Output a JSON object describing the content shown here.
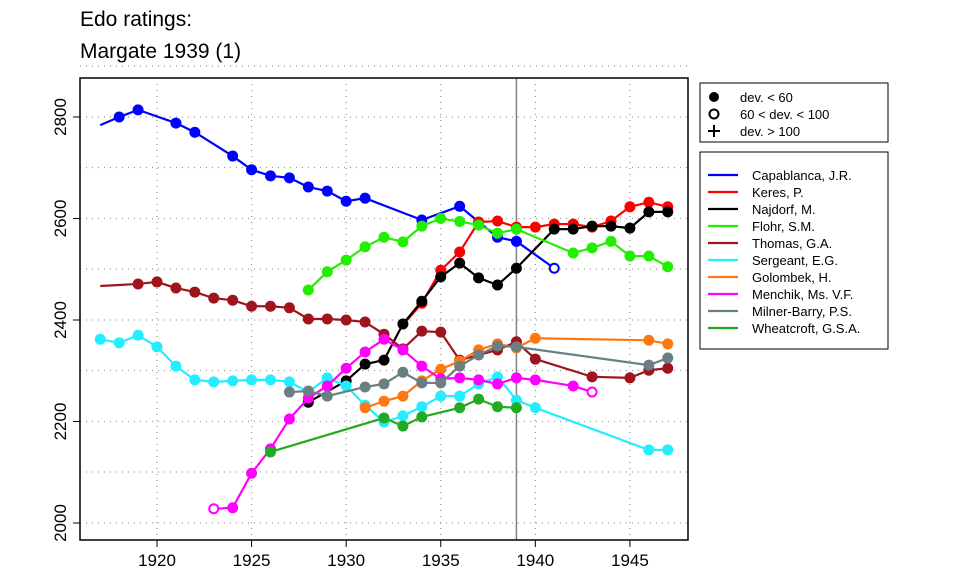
{
  "chart_data": {
    "type": "line",
    "title": [
      "Edo ratings:",
      "Margate 1939 (1)"
    ],
    "xlabel": "",
    "ylabel": "",
    "xlim": [
      1915.93,
      1948.07
    ],
    "ylim": [
      1966.5,
      2876.8
    ],
    "xticks": [
      1920,
      1925,
      1930,
      1935,
      1940,
      1945
    ],
    "yticks": [
      2000,
      2200,
      2400,
      2600,
      2800
    ],
    "grid": "dotted",
    "vline": {
      "x": 1939,
      "color": "#808080"
    },
    "marker_legend": {
      "position": "top-right",
      "entries": [
        {
          "symbol": "filled",
          "label": "dev. < 60"
        },
        {
          "symbol": "open",
          "label": "60 < dev. < 100"
        },
        {
          "symbol": "plus",
          "label": "dev. > 100"
        }
      ]
    },
    "series_legend_position": "right",
    "series": [
      {
        "name": "Capablanca, J.R.",
        "color": "#0000ff",
        "points": [
          [
            1917,
            2784,
            "none"
          ],
          [
            1918,
            2800,
            "f"
          ],
          [
            1919,
            2814,
            "f"
          ],
          [
            1921,
            2788,
            "f"
          ],
          [
            1922,
            2770,
            "f"
          ],
          [
            1924,
            2723,
            "f"
          ],
          [
            1925,
            2696,
            "f"
          ],
          [
            1926,
            2684,
            "f"
          ],
          [
            1927,
            2680,
            "f"
          ],
          [
            1928,
            2662,
            "f"
          ],
          [
            1929,
            2654,
            "f"
          ],
          [
            1930,
            2634,
            "f"
          ],
          [
            1931,
            2640,
            "f"
          ],
          [
            1934,
            2597,
            "f"
          ],
          [
            1936,
            2624,
            "f"
          ],
          [
            1938,
            2563,
            "f"
          ],
          [
            1939,
            2555,
            "f"
          ],
          [
            1941,
            2502,
            "o"
          ]
        ]
      },
      {
        "name": "Keres, P.",
        "color": "#ff0000",
        "points": [
          [
            1933,
            2390,
            "none"
          ],
          [
            1934,
            2433,
            "f"
          ],
          [
            1935,
            2498,
            "f"
          ],
          [
            1936,
            2534,
            "f"
          ],
          [
            1937,
            2593,
            "f"
          ],
          [
            1938,
            2595,
            "f"
          ],
          [
            1939,
            2583,
            "f"
          ],
          [
            1940,
            2583,
            "f"
          ],
          [
            1941,
            2589,
            "f"
          ],
          [
            1942,
            2589,
            "f"
          ],
          [
            1943,
            2583,
            "f"
          ],
          [
            1944,
            2595,
            "f"
          ],
          [
            1945,
            2623,
            "f"
          ],
          [
            1946,
            2632,
            "f"
          ],
          [
            1947,
            2623,
            "f"
          ]
        ]
      },
      {
        "name": "Najdorf, M.",
        "color": "#000000",
        "points": [
          [
            1928,
            2238,
            "f"
          ],
          [
            1930,
            2280,
            "f"
          ],
          [
            1931,
            2313,
            "f"
          ],
          [
            1932,
            2321,
            "f"
          ],
          [
            1933,
            2392,
            "f"
          ],
          [
            1934,
            2437,
            "f"
          ],
          [
            1935,
            2485,
            "f"
          ],
          [
            1936,
            2512,
            "f"
          ],
          [
            1937,
            2483,
            "f"
          ],
          [
            1938,
            2469,
            "f"
          ],
          [
            1939,
            2502,
            "f"
          ],
          [
            1941,
            2579,
            "f"
          ],
          [
            1942,
            2579,
            "f"
          ],
          [
            1943,
            2585,
            "f"
          ],
          [
            1944,
            2585,
            "f"
          ],
          [
            1945,
            2581,
            "f"
          ],
          [
            1946,
            2613,
            "f"
          ],
          [
            1947,
            2613,
            "f"
          ]
        ]
      },
      {
        "name": "Flohr, S.M.",
        "color": "#22ee00",
        "points": [
          [
            1928,
            2459,
            "f"
          ],
          [
            1929,
            2495,
            "f"
          ],
          [
            1930,
            2518,
            "f"
          ],
          [
            1931,
            2544,
            "f"
          ],
          [
            1932,
            2563,
            "f"
          ],
          [
            1933,
            2554,
            "f"
          ],
          [
            1934,
            2585,
            "f"
          ],
          [
            1935,
            2600,
            "f"
          ],
          [
            1936,
            2594,
            "f"
          ],
          [
            1937,
            2587,
            "f"
          ],
          [
            1938,
            2571,
            "f"
          ],
          [
            1939,
            2579,
            "f"
          ],
          [
            1942,
            2532,
            "f"
          ],
          [
            1943,
            2542,
            "f"
          ],
          [
            1944,
            2555,
            "f"
          ],
          [
            1945,
            2526,
            "f"
          ],
          [
            1946,
            2526,
            "f"
          ],
          [
            1947,
            2505,
            "f"
          ]
        ]
      },
      {
        "name": "Thomas, G.A.",
        "color": "#a0141e",
        "points": [
          [
            1917,
            2467,
            "none"
          ],
          [
            1919,
            2471,
            "f"
          ],
          [
            1920,
            2475,
            "f"
          ],
          [
            1921,
            2463,
            "f"
          ],
          [
            1922,
            2455,
            "f"
          ],
          [
            1923,
            2443,
            "f"
          ],
          [
            1924,
            2439,
            "f"
          ],
          [
            1925,
            2427,
            "f"
          ],
          [
            1926,
            2427,
            "f"
          ],
          [
            1927,
            2424,
            "f"
          ],
          [
            1928,
            2402,
            "f"
          ],
          [
            1929,
            2402,
            "f"
          ],
          [
            1930,
            2400,
            "f"
          ],
          [
            1931,
            2396,
            "f"
          ],
          [
            1932,
            2372,
            "f"
          ],
          [
            1933,
            2343,
            "f"
          ],
          [
            1934,
            2378,
            "f"
          ],
          [
            1935,
            2376,
            "f"
          ],
          [
            1936,
            2321,
            "f"
          ],
          [
            1938,
            2341,
            "f"
          ],
          [
            1939,
            2357,
            "f"
          ],
          [
            1940,
            2323,
            "f"
          ],
          [
            1943,
            2288,
            "f"
          ],
          [
            1945,
            2286,
            "f"
          ],
          [
            1946,
            2301,
            "f"
          ],
          [
            1947,
            2305,
            "f"
          ]
        ]
      },
      {
        "name": "Sergeant, E.G.",
        "color": "#22eeff",
        "points": [
          [
            1917,
            2362,
            "f"
          ],
          [
            1918,
            2355,
            "f"
          ],
          [
            1919,
            2370,
            "f"
          ],
          [
            1920,
            2347,
            "f"
          ],
          [
            1921,
            2309,
            "f"
          ],
          [
            1922,
            2282,
            "f"
          ],
          [
            1923,
            2278,
            "f"
          ],
          [
            1924,
            2280,
            "f"
          ],
          [
            1925,
            2282,
            "f"
          ],
          [
            1926,
            2282,
            "f"
          ],
          [
            1927,
            2278,
            "f"
          ],
          [
            1928,
            2258,
            "f"
          ],
          [
            1929,
            2286,
            "f"
          ],
          [
            1930,
            2270,
            "f"
          ],
          [
            1931,
            2232,
            "f"
          ],
          [
            1932,
            2199,
            "f"
          ],
          [
            1933,
            2211,
            "f"
          ],
          [
            1934,
            2229,
            "f"
          ],
          [
            1935,
            2250,
            "f"
          ],
          [
            1936,
            2250,
            "f"
          ],
          [
            1937,
            2274,
            "f"
          ],
          [
            1938,
            2288,
            "f"
          ],
          [
            1939,
            2242,
            "f"
          ],
          [
            1940,
            2227,
            "f"
          ],
          [
            1946,
            2144,
            "f"
          ],
          [
            1947,
            2144,
            "f"
          ]
        ]
      },
      {
        "name": "Golombek, H.",
        "color": "#ff7711",
        "points": [
          [
            1931,
            2227,
            "f"
          ],
          [
            1932,
            2240,
            "f"
          ],
          [
            1933,
            2250,
            "f"
          ],
          [
            1934,
            2280,
            "f"
          ],
          [
            1935,
            2303,
            "f"
          ],
          [
            1936,
            2319,
            "f"
          ],
          [
            1937,
            2341,
            "f"
          ],
          [
            1938,
            2353,
            "f"
          ],
          [
            1939,
            2345,
            "f"
          ],
          [
            1940,
            2364,
            "f"
          ],
          [
            1946,
            2360,
            "f"
          ],
          [
            1947,
            2353,
            "f"
          ]
        ]
      },
      {
        "name": "Menchik, Ms. V.F.",
        "color": "#ff00ff",
        "points": [
          [
            1923,
            2028,
            "o"
          ],
          [
            1924,
            2030,
            "f"
          ],
          [
            1925,
            2098,
            "f"
          ],
          [
            1926,
            2146,
            "f"
          ],
          [
            1927,
            2205,
            "f"
          ],
          [
            1928,
            2246,
            "f"
          ],
          [
            1929,
            2270,
            "f"
          ],
          [
            1930,
            2305,
            "f"
          ],
          [
            1931,
            2337,
            "f"
          ],
          [
            1932,
            2362,
            "f"
          ],
          [
            1933,
            2341,
            "f"
          ],
          [
            1934,
            2309,
            "f"
          ],
          [
            1935,
            2284,
            "f"
          ],
          [
            1936,
            2286,
            "f"
          ],
          [
            1937,
            2282,
            "f"
          ],
          [
            1938,
            2274,
            "f"
          ],
          [
            1939,
            2286,
            "f"
          ],
          [
            1940,
            2282,
            "f"
          ],
          [
            1942,
            2270,
            "f"
          ],
          [
            1943,
            2258,
            "o"
          ]
        ]
      },
      {
        "name": "Milner-Barry, P.S.",
        "color": "#6a8080",
        "points": [
          [
            1927,
            2258,
            "f"
          ],
          [
            1928,
            2260,
            "f"
          ],
          [
            1929,
            2250,
            "f"
          ],
          [
            1931,
            2268,
            "f"
          ],
          [
            1932,
            2274,
            "f"
          ],
          [
            1933,
            2297,
            "f"
          ],
          [
            1934,
            2276,
            "f"
          ],
          [
            1935,
            2276,
            "f"
          ],
          [
            1936,
            2309,
            "f"
          ],
          [
            1937,
            2331,
            "f"
          ],
          [
            1938,
            2349,
            "f"
          ],
          [
            1939,
            2347,
            "f"
          ],
          [
            1946,
            2311,
            "f"
          ],
          [
            1947,
            2325,
            "f"
          ]
        ]
      },
      {
        "name": "Wheatcroft, G.S.A.",
        "color": "#22aa22",
        "points": [
          [
            1926,
            2140,
            "f"
          ],
          [
            1932,
            2207,
            "f"
          ],
          [
            1933,
            2191,
            "f"
          ],
          [
            1934,
            2209,
            "f"
          ],
          [
            1936,
            2227,
            "f"
          ],
          [
            1937,
            2244,
            "f"
          ],
          [
            1938,
            2229,
            "f"
          ],
          [
            1939,
            2227,
            "f"
          ]
        ]
      }
    ]
  }
}
